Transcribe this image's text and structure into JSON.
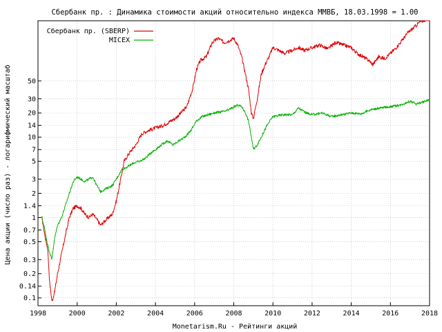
{
  "chart_data": {
    "type": "line",
    "title": "Сбербанк пр. : Динамика стоимости акций относительно индекса ММВБ, 18.03.1998 = 1.00",
    "xlabel": "Monetarism.Ru - Рейтинги акций",
    "ylabel": "Цена акции (число раз) - логарифмический масштаб",
    "y_scale": "log",
    "xlim": [
      1998,
      2018
    ],
    "ylim": [
      0.08,
      280
    ],
    "grid": true,
    "legend_position": "top-left",
    "x_ticks": [
      "1998",
      "2000",
      "2002",
      "2004",
      "2006",
      "2008",
      "2010",
      "2012",
      "2014",
      "2016",
      "2018"
    ],
    "y_ticks": [
      "0.1",
      "0.14",
      "0.2",
      "0.3",
      "0.5",
      "0.7",
      "1",
      "1.4",
      "2",
      "3",
      "5",
      "7",
      "10",
      "14",
      "20",
      "30",
      "50"
    ],
    "series": [
      {
        "name": "Сбербанк пр. (SBERP)",
        "color": "#dd0000",
        "x": [
          1998.2,
          1998.35,
          1998.5,
          1998.6,
          1998.72,
          1998.85,
          1999.0,
          1999.2,
          1999.4,
          1999.6,
          1999.8,
          2000.0,
          2000.2,
          2000.4,
          2000.6,
          2000.8,
          2001.0,
          2001.2,
          2001.4,
          2001.6,
          2001.8,
          2002.0,
          2002.2,
          2002.4,
          2002.6,
          2002.8,
          2003.0,
          2003.3,
          2003.6,
          2004.0,
          2004.4,
          2004.8,
          2005.0,
          2005.3,
          2005.6,
          2005.9,
          2006.1,
          2006.3,
          2006.6,
          2006.9,
          2007.2,
          2007.5,
          2007.8,
          2008.0,
          2008.2,
          2008.4,
          2008.6,
          2008.75,
          2008.9,
          2009.0,
          2009.2,
          2009.4,
          2009.6,
          2009.8,
          2010.0,
          2010.3,
          2010.6,
          2011.0,
          2011.3,
          2011.6,
          2012.0,
          2012.4,
          2012.8,
          2013.2,
          2013.6,
          2014.0,
          2014.3,
          2014.6,
          2014.9,
          2015.1,
          2015.4,
          2015.7,
          2016.0,
          2016.3,
          2016.6,
          2016.9,
          2017.2,
          2017.5,
          2017.8,
          2018.0
        ],
        "values": [
          1.0,
          0.6,
          0.4,
          0.15,
          0.09,
          0.12,
          0.2,
          0.35,
          0.6,
          1.0,
          1.3,
          1.4,
          1.3,
          1.1,
          1.0,
          1.1,
          0.95,
          0.8,
          0.9,
          1.0,
          1.1,
          1.6,
          2.8,
          5.0,
          6.0,
          7.0,
          8.0,
          11.0,
          12.0,
          13.0,
          14.0,
          16.0,
          17.0,
          20.0,
          24.0,
          40.0,
          70.0,
          90.0,
          100.0,
          150.0,
          170.0,
          150.0,
          160.0,
          170.0,
          140.0,
          100.0,
          60.0,
          40.0,
          20.0,
          17.0,
          30.0,
          60.0,
          80.0,
          100.0,
          130.0,
          120.0,
          110.0,
          120.0,
          130.0,
          120.0,
          130.0,
          140.0,
          125.0,
          150.0,
          140.0,
          130.0,
          110.0,
          100.0,
          90.0,
          80.0,
          100.0,
          95.0,
          110.0,
          130.0,
          160.0,
          200.0,
          230.0,
          270.0,
          290.0,
          310.0
        ]
      },
      {
        "name": "MICEX",
        "color": "#00b000",
        "x": [
          1998.2,
          1998.35,
          1998.5,
          1998.7,
          1998.85,
          1999.0,
          1999.2,
          1999.4,
          1999.6,
          1999.8,
          2000.0,
          2000.2,
          2000.4,
          2000.6,
          2000.8,
          2001.0,
          2001.2,
          2001.5,
          2001.8,
          2002.0,
          2002.3,
          2002.6,
          2002.9,
          2003.2,
          2003.5,
          2003.8,
          2004.0,
          2004.3,
          2004.6,
          2004.9,
          2005.2,
          2005.5,
          2005.8,
          2006.1,
          2006.4,
          2006.7,
          2007.0,
          2007.3,
          2007.6,
          2007.9,
          2008.2,
          2008.4,
          2008.6,
          2008.75,
          2008.9,
          2009.0,
          2009.2,
          2009.4,
          2009.7,
          2010.0,
          2010.5,
          2011.0,
          2011.3,
          2011.7,
          2012.0,
          2012.5,
          2013.0,
          2013.5,
          2014.0,
          2014.5,
          2015.0,
          2015.5,
          2016.0,
          2016.5,
          2017.0,
          2017.3,
          2017.6,
          2018.0
        ],
        "values": [
          1.0,
          0.7,
          0.45,
          0.3,
          0.55,
          0.8,
          1.0,
          1.4,
          2.0,
          2.8,
          3.2,
          3.0,
          2.8,
          3.0,
          3.2,
          2.5,
          2.1,
          2.3,
          2.5,
          3.0,
          4.0,
          4.3,
          4.8,
          5.0,
          5.5,
          6.5,
          7.0,
          8.0,
          9.0,
          8.0,
          9.0,
          10.0,
          12.0,
          16.0,
          18.0,
          19.0,
          20.0,
          20.5,
          21.0,
          23.0,
          25.0,
          24.0,
          20.0,
          16.0,
          10.0,
          7.0,
          8.0,
          10.0,
          14.0,
          18.0,
          19.0,
          19.0,
          23.0,
          20.0,
          19.0,
          20.0,
          18.0,
          19.0,
          20.0,
          19.5,
          22.0,
          23.0,
          24.0,
          25.0,
          28.0,
          26.0,
          27.0,
          29.0
        ]
      }
    ]
  }
}
